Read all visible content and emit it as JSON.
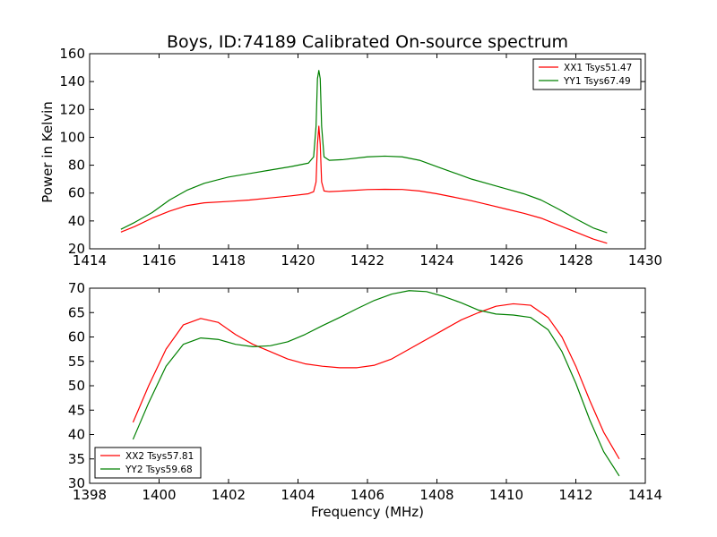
{
  "chart_data": [
    {
      "type": "line",
      "title": "Boys, ID:74189 Calibrated On-source spectrum",
      "xlabel": "",
      "ylabel": "Power in Kelvin",
      "xlim": [
        1414,
        1430
      ],
      "ylim": [
        20,
        160
      ],
      "xticks": [
        1414,
        1416,
        1418,
        1420,
        1422,
        1424,
        1426,
        1428,
        1430
      ],
      "yticks": [
        20,
        40,
        60,
        80,
        100,
        120,
        140,
        160
      ],
      "legend_position": "top-right",
      "series": [
        {
          "name": "XX1 Tsys51.47",
          "color": "#ff0000",
          "x": [
            1414.9,
            1415.3,
            1415.8,
            1416.3,
            1416.8,
            1417.3,
            1418,
            1418.6,
            1419.2,
            1419.8,
            1420.3,
            1420.45,
            1420.52,
            1420.56,
            1420.6,
            1420.64,
            1420.68,
            1420.75,
            1420.9,
            1421.3,
            1422,
            1422.5,
            1423,
            1423.5,
            1424,
            1424.5,
            1425,
            1425.5,
            1426,
            1426.5,
            1427,
            1427.5,
            1428,
            1428.5,
            1428.9
          ],
          "y": [
            32,
            36,
            42,
            47,
            51,
            53,
            54,
            55,
            56.5,
            58,
            59.5,
            61,
            68,
            95,
            108,
            95,
            68,
            61.5,
            61,
            61.5,
            62.5,
            62.7,
            62.6,
            61.5,
            59.5,
            57,
            54.5,
            51.5,
            48.5,
            45.5,
            42,
            37,
            32,
            27,
            24
          ]
        },
        {
          "name": "YY1 Tsys67.49",
          "color": "#008000",
          "x": [
            1414.9,
            1415.3,
            1415.8,
            1416.3,
            1416.8,
            1417.3,
            1418,
            1418.6,
            1419.2,
            1419.8,
            1420.3,
            1420.45,
            1420.52,
            1420.56,
            1420.6,
            1420.64,
            1420.68,
            1420.75,
            1420.9,
            1421.3,
            1422,
            1422.5,
            1423,
            1423.5,
            1424,
            1424.5,
            1425,
            1425.5,
            1426,
            1426.5,
            1427,
            1427.5,
            1428,
            1428.5,
            1428.9
          ],
          "y": [
            34,
            39,
            46,
            55,
            62,
            67,
            71.5,
            74,
            76.5,
            79,
            81.5,
            86,
            108,
            142,
            148,
            142,
            108,
            86,
            83.5,
            84,
            86,
            86.5,
            86,
            83.5,
            79,
            74.5,
            70,
            66.5,
            63,
            59.5,
            55,
            48.5,
            41.5,
            35,
            31.5
          ]
        }
      ]
    },
    {
      "type": "line",
      "title": "",
      "xlabel": "Frequency (MHz)",
      "ylabel": "",
      "xlim": [
        1398,
        1414
      ],
      "ylim": [
        30,
        70
      ],
      "xticks": [
        1398,
        1400,
        1402,
        1404,
        1406,
        1408,
        1410,
        1412,
        1414
      ],
      "yticks": [
        30,
        35,
        40,
        45,
        50,
        55,
        60,
        65,
        70
      ],
      "legend_position": "bottom-left",
      "series": [
        {
          "name": "XX2 Tsys57.81",
          "color": "#ff0000",
          "x": [
            1399.25,
            1399.7,
            1400.2,
            1400.7,
            1401.2,
            1401.7,
            1402.2,
            1402.7,
            1403.2,
            1403.7,
            1404.2,
            1404.7,
            1405.2,
            1405.7,
            1406.2,
            1406.7,
            1407.2,
            1407.7,
            1408.2,
            1408.7,
            1409.2,
            1409.7,
            1410.2,
            1410.7,
            1411.2,
            1411.6,
            1412,
            1412.4,
            1412.8,
            1413.25
          ],
          "y": [
            42.5,
            50,
            57.5,
            62.5,
            63.8,
            63,
            60.5,
            58.5,
            57,
            55.5,
            54.5,
            54,
            53.7,
            53.7,
            54.2,
            55.5,
            57.5,
            59.5,
            61.5,
            63.5,
            65,
            66.3,
            66.8,
            66.5,
            64,
            60,
            54,
            47,
            40.5,
            35
          ]
        },
        {
          "name": "YY2 Tsys59.68",
          "color": "#008000",
          "x": [
            1399.25,
            1399.7,
            1400.2,
            1400.7,
            1401.2,
            1401.7,
            1402.2,
            1402.7,
            1403.2,
            1403.7,
            1404.2,
            1404.7,
            1405.2,
            1405.7,
            1406.2,
            1406.7,
            1407.2,
            1407.7,
            1408.2,
            1408.7,
            1409.2,
            1409.7,
            1410.2,
            1410.7,
            1411.2,
            1411.6,
            1412,
            1412.4,
            1412.8,
            1413.25
          ],
          "y": [
            39,
            46.5,
            54,
            58.5,
            59.8,
            59.5,
            58.5,
            58,
            58.2,
            59,
            60.5,
            62.3,
            64,
            65.8,
            67.5,
            68.8,
            69.5,
            69.3,
            68.3,
            67,
            65.5,
            64.7,
            64.5,
            64,
            61.5,
            57,
            50.5,
            43,
            36.5,
            31.5
          ]
        }
      ]
    }
  ]
}
